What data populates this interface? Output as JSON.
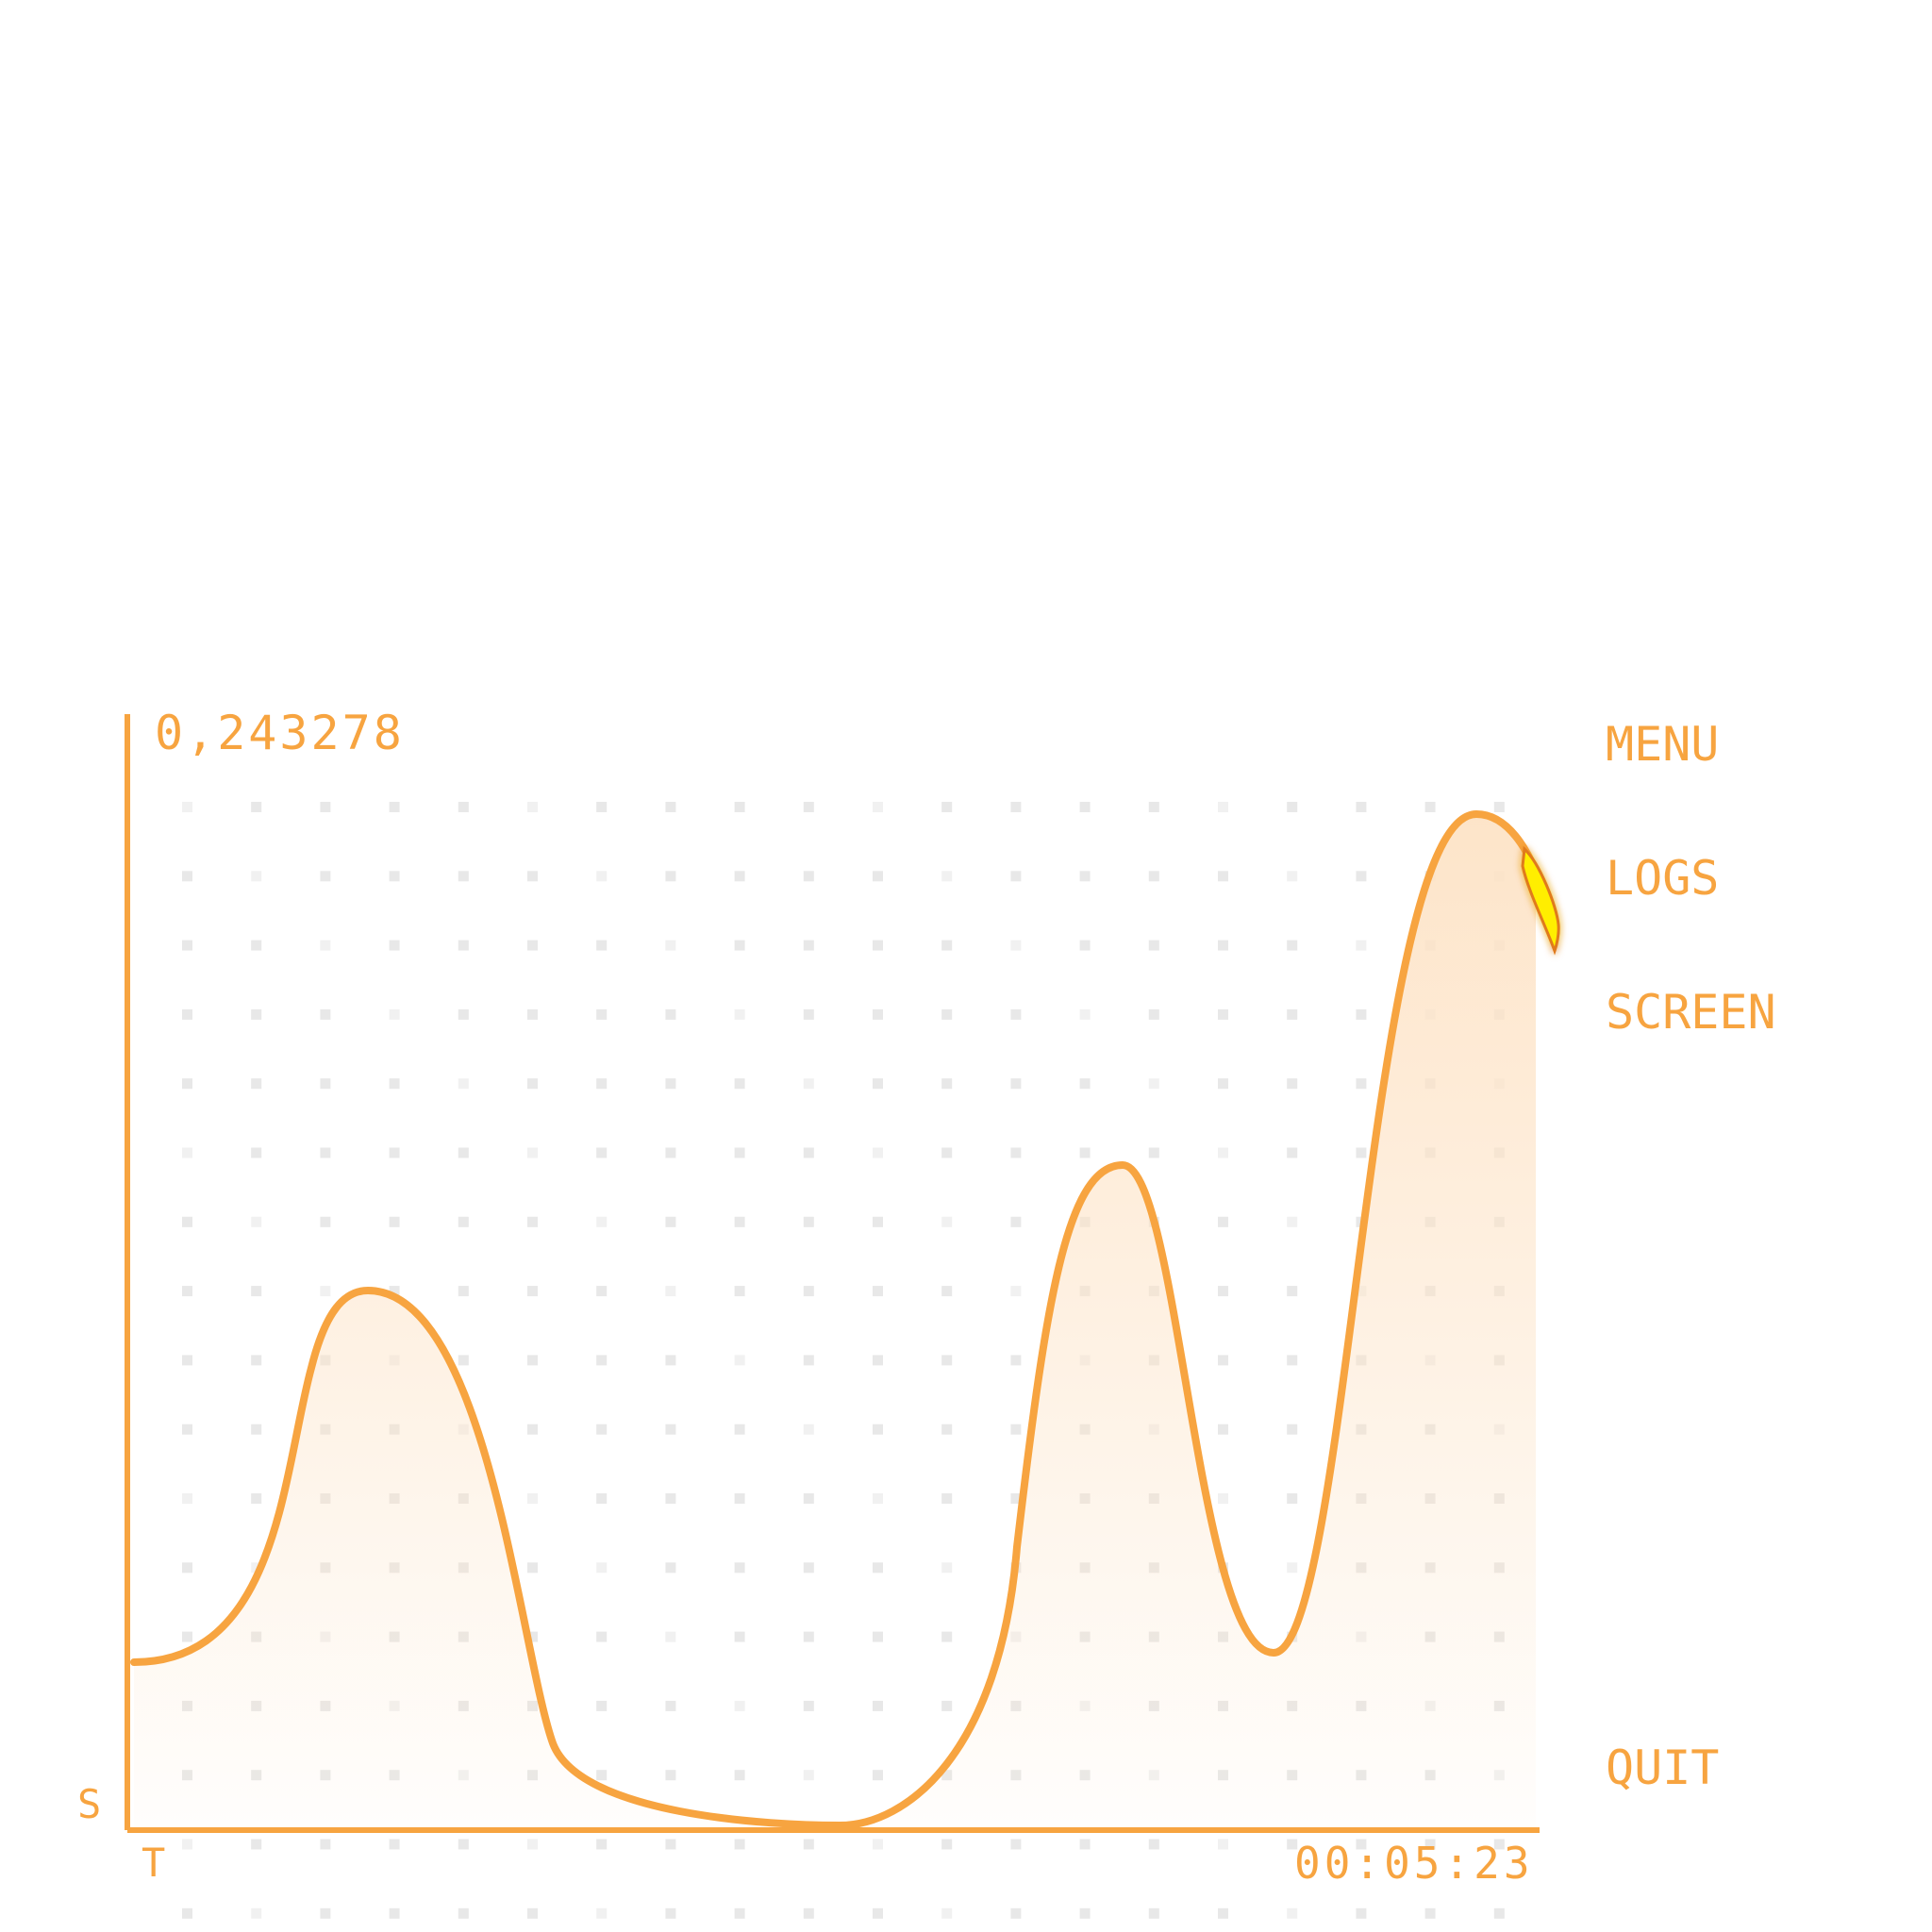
{
  "hud": {
    "score": "0,243278",
    "y_axis_label": "S",
    "x_axis_label": "T",
    "timer": "00:05:23"
  },
  "menu": {
    "items": [
      {
        "id": "menu",
        "label": "MENU"
      },
      {
        "id": "logs",
        "label": "LOGS"
      },
      {
        "id": "screen",
        "label": "SCREEN"
      }
    ],
    "quit_label": "QUIT"
  },
  "colors": {
    "accent": "#f7a440",
    "fill": "#fde3c6",
    "grid_dot": "#e6e6e6",
    "marker": "#ffee00"
  },
  "icons": {
    "player_marker": "flame-icon"
  }
}
